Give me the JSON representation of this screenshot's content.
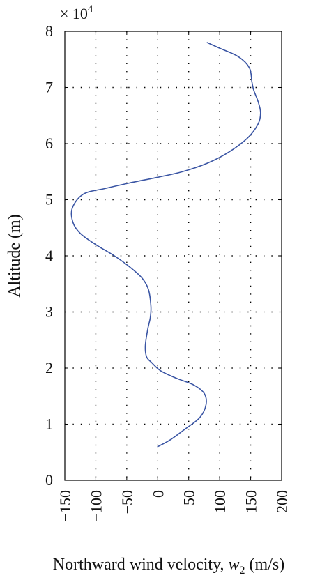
{
  "chart_data": {
    "type": "line",
    "title": "",
    "xlabel": "Northward wind velocity, ",
    "xlabel_var": "w",
    "xlabel_sub": "2",
    "xlabel_unit": " (m/s)",
    "ylabel": "Altitude (m)",
    "y_multiplier_prefix": "× 10",
    "y_multiplier_exp": "4",
    "xlim": [
      -150,
      200
    ],
    "ylim": [
      0,
      8
    ],
    "x_ticks": [
      -150,
      -100,
      -50,
      0,
      50,
      100,
      150,
      200
    ],
    "x_tick_labels": [
      "−150",
      "−100",
      "−50",
      "0",
      "50",
      "100",
      "150",
      "200"
    ],
    "y_ticks": [
      0,
      1,
      2,
      3,
      4,
      5,
      6,
      7,
      8
    ],
    "y_tick_labels": [
      "0",
      "1",
      "2",
      "3",
      "4",
      "5",
      "6",
      "7",
      "8"
    ],
    "grid": true,
    "series": [
      {
        "color": "#3a55a4",
        "x": [
          0,
          20,
          45,
          68,
          78,
          75,
          58,
          30,
          5,
          -10,
          -18,
          -20,
          -16,
          -12,
          -11,
          -15,
          -25,
          -45,
          -70,
          -100,
          -125,
          -137,
          -138,
          -120,
          -85,
          -45,
          0,
          40,
          80,
          115,
          145,
          162,
          166,
          162,
          155,
          152,
          148,
          130,
          100,
          80
        ],
        "y": [
          0.6,
          0.72,
          0.92,
          1.12,
          1.35,
          1.55,
          1.7,
          1.82,
          1.95,
          2.1,
          2.2,
          2.4,
          2.7,
          2.9,
          3.1,
          3.4,
          3.6,
          3.8,
          4.0,
          4.2,
          4.4,
          4.6,
          4.85,
          5.1,
          5.2,
          5.3,
          5.4,
          5.5,
          5.65,
          5.85,
          6.1,
          6.35,
          6.55,
          6.75,
          6.95,
          7.1,
          7.35,
          7.55,
          7.7,
          7.8
        ]
      }
    ]
  }
}
